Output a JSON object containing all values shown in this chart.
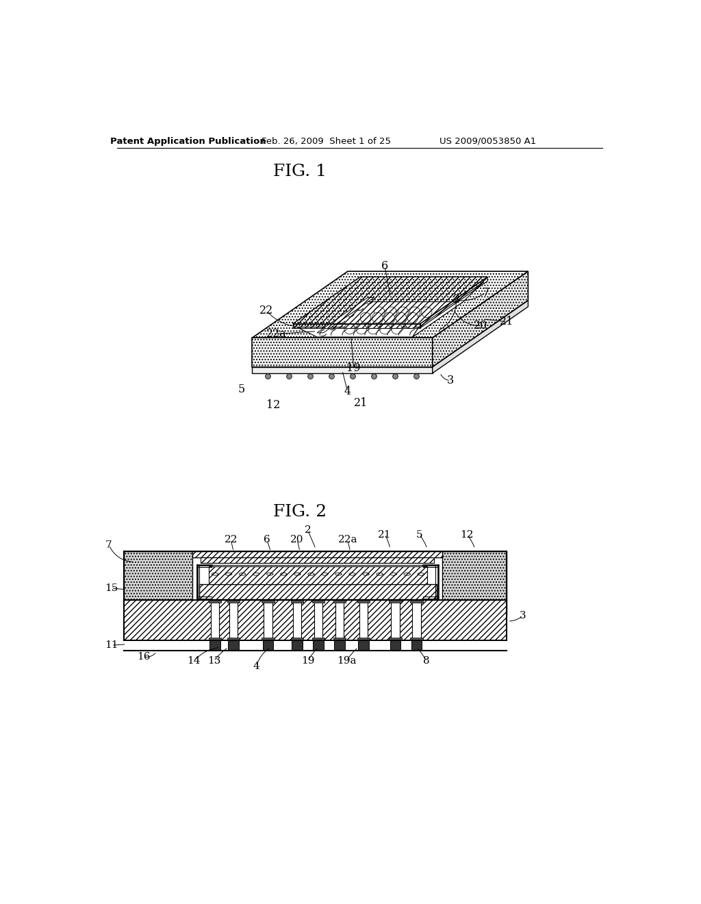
{
  "background_color": "#ffffff",
  "header_left": "Patent Application Publication",
  "header_mid": "Feb. 26, 2009  Sheet 1 of 25",
  "header_right": "US 2009/0053850 A1",
  "fig1_title": "FIG. 1",
  "fig2_title": "FIG. 2"
}
